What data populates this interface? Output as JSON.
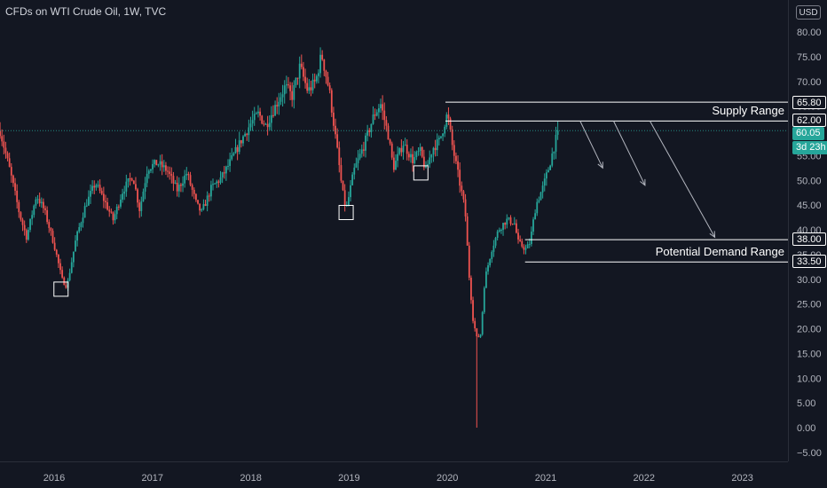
{
  "header": {
    "title": "CFDs on WTI Crude Oil, 1W, TVC",
    "currency": "USD"
  },
  "annotations": {
    "supply_label": "Supply Range",
    "demand_label": "Potential Demand Range"
  },
  "price_tags": {
    "supply_top": "65.80",
    "supply_bottom": "62.00",
    "last_price": "60.05",
    "countdown": "3d 23h",
    "demand_top": "38.00",
    "demand_bottom": "33.50"
  },
  "colors": {
    "background": "#131722",
    "up": "#26a69a",
    "down": "#ef5350",
    "axis_text": "#b2b5be",
    "annotation": "#ffffff"
  },
  "chart_data": {
    "type": "candlestick",
    "title": "CFDs on WTI Crude Oil, 1W, TVC",
    "timeframe": "1W",
    "ylabel": "USD",
    "ylim": [
      -7,
      85
    ],
    "xlim": [
      2015.45,
      2023.75
    ],
    "grid": false,
    "y_ticks": [
      "80.00",
      "75.00",
      "70.00",
      "65.00",
      "60.00",
      "55.00",
      "50.00",
      "45.00",
      "40.00",
      "35.00",
      "30.00",
      "25.00",
      "20.00",
      "15.00",
      "10.00",
      "5.00",
      "0.00",
      "−5.00"
    ],
    "y_tick_values": [
      80,
      75,
      70,
      65,
      60,
      55,
      50,
      45,
      40,
      35,
      30,
      25,
      20,
      15,
      10,
      5,
      0,
      -5
    ],
    "x_ticks": [
      "2016",
      "2017",
      "2018",
      "2019",
      "2020",
      "2021",
      "2022",
      "2023"
    ],
    "x_tick_values": [
      2016,
      2017,
      2018,
      2019,
      2020,
      2021,
      2022,
      2023
    ],
    "price_path": [
      [
        2015.45,
        60.0
      ],
      [
        2015.55,
        52.0
      ],
      [
        2015.65,
        43.0
      ],
      [
        2015.72,
        38.5
      ],
      [
        2015.82,
        47.0
      ],
      [
        2015.9,
        44.0
      ],
      [
        2016.0,
        37.0
      ],
      [
        2016.08,
        30.0
      ],
      [
        2016.13,
        28.5
      ],
      [
        2016.22,
        38.0
      ],
      [
        2016.32,
        45.0
      ],
      [
        2016.42,
        49.5
      ],
      [
        2016.52,
        45.5
      ],
      [
        2016.6,
        42.0
      ],
      [
        2016.7,
        48.0
      ],
      [
        2016.8,
        51.0
      ],
      [
        2016.87,
        44.0
      ],
      [
        2016.95,
        52.5
      ],
      [
        2017.05,
        53.5
      ],
      [
        2017.15,
        52.0
      ],
      [
        2017.25,
        48.0
      ],
      [
        2017.35,
        51.5
      ],
      [
        2017.45,
        45.0
      ],
      [
        2017.5,
        43.5
      ],
      [
        2017.6,
        48.5
      ],
      [
        2017.7,
        50.5
      ],
      [
        2017.8,
        54.0
      ],
      [
        2017.9,
        58.0
      ],
      [
        2018.0,
        61.5
      ],
      [
        2018.08,
        63.5
      ],
      [
        2018.15,
        61.0
      ],
      [
        2018.25,
        65.0
      ],
      [
        2018.35,
        69.0
      ],
      [
        2018.42,
        67.0
      ],
      [
        2018.5,
        73.0
      ],
      [
        2018.58,
        68.0
      ],
      [
        2018.66,
        70.0
      ],
      [
        2018.72,
        75.5
      ],
      [
        2018.8,
        68.0
      ],
      [
        2018.88,
        56.0
      ],
      [
        2018.93,
        48.0
      ],
      [
        2018.97,
        44.0
      ],
      [
        2019.05,
        52.0
      ],
      [
        2019.15,
        57.0
      ],
      [
        2019.25,
        63.0
      ],
      [
        2019.32,
        65.5
      ],
      [
        2019.4,
        59.0
      ],
      [
        2019.45,
        52.5
      ],
      [
        2019.55,
        57.5
      ],
      [
        2019.65,
        54.0
      ],
      [
        2019.72,
        56.0
      ],
      [
        2019.78,
        52.0
      ],
      [
        2019.85,
        56.5
      ],
      [
        2019.92,
        58.0
      ],
      [
        2020.0,
        63.5
      ],
      [
        2020.05,
        57.0
      ],
      [
        2020.12,
        50.0
      ],
      [
        2020.18,
        44.0
      ],
      [
        2020.22,
        31.0
      ],
      [
        2020.26,
        22.0
      ],
      [
        2020.3,
        18.0
      ],
      [
        2020.34,
        19.0
      ],
      [
        2020.38,
        30.0
      ],
      [
        2020.45,
        36.0
      ],
      [
        2020.52,
        40.0
      ],
      [
        2020.6,
        42.0
      ],
      [
        2020.68,
        41.5
      ],
      [
        2020.72,
        37.5
      ],
      [
        2020.8,
        36.0
      ],
      [
        2020.84,
        37.5
      ],
      [
        2020.9,
        45.0
      ],
      [
        2020.97,
        48.5
      ],
      [
        2021.03,
        52.5
      ],
      [
        2021.1,
        58.0
      ],
      [
        2021.13,
        60.05
      ]
    ],
    "spike_low": {
      "x": 2020.3,
      "low": 0.0
    },
    "swing_low_markers": [
      {
        "x": 2016.07,
        "value": 28.0
      },
      {
        "x": 2018.97,
        "value": 43.5
      },
      {
        "x": 2019.73,
        "value": 51.5
      }
    ],
    "horizontal_levels": [
      {
        "value": 65.8,
        "x_start": 2019.98,
        "label": "65.80"
      },
      {
        "value": 62.0,
        "x_start": 2019.98,
        "label": "62.00"
      },
      {
        "value": 38.0,
        "x_start": 2020.79,
        "label": "38.00"
      },
      {
        "value": 33.5,
        "x_start": 2020.79,
        "label": "33.50"
      }
    ],
    "last_price_line": {
      "value": 60.05,
      "style": "dotted"
    },
    "projection_arrows": [
      {
        "from": [
          2021.35,
          62.0
        ],
        "to": [
          2021.58,
          52.5
        ]
      },
      {
        "from": [
          2021.69,
          62.0
        ],
        "to": [
          2022.01,
          49.0
        ]
      },
      {
        "from": [
          2022.06,
          62.0
        ],
        "to": [
          2022.72,
          38.5
        ]
      }
    ],
    "annotations": [
      "Supply Range",
      "Potential Demand Range"
    ]
  }
}
